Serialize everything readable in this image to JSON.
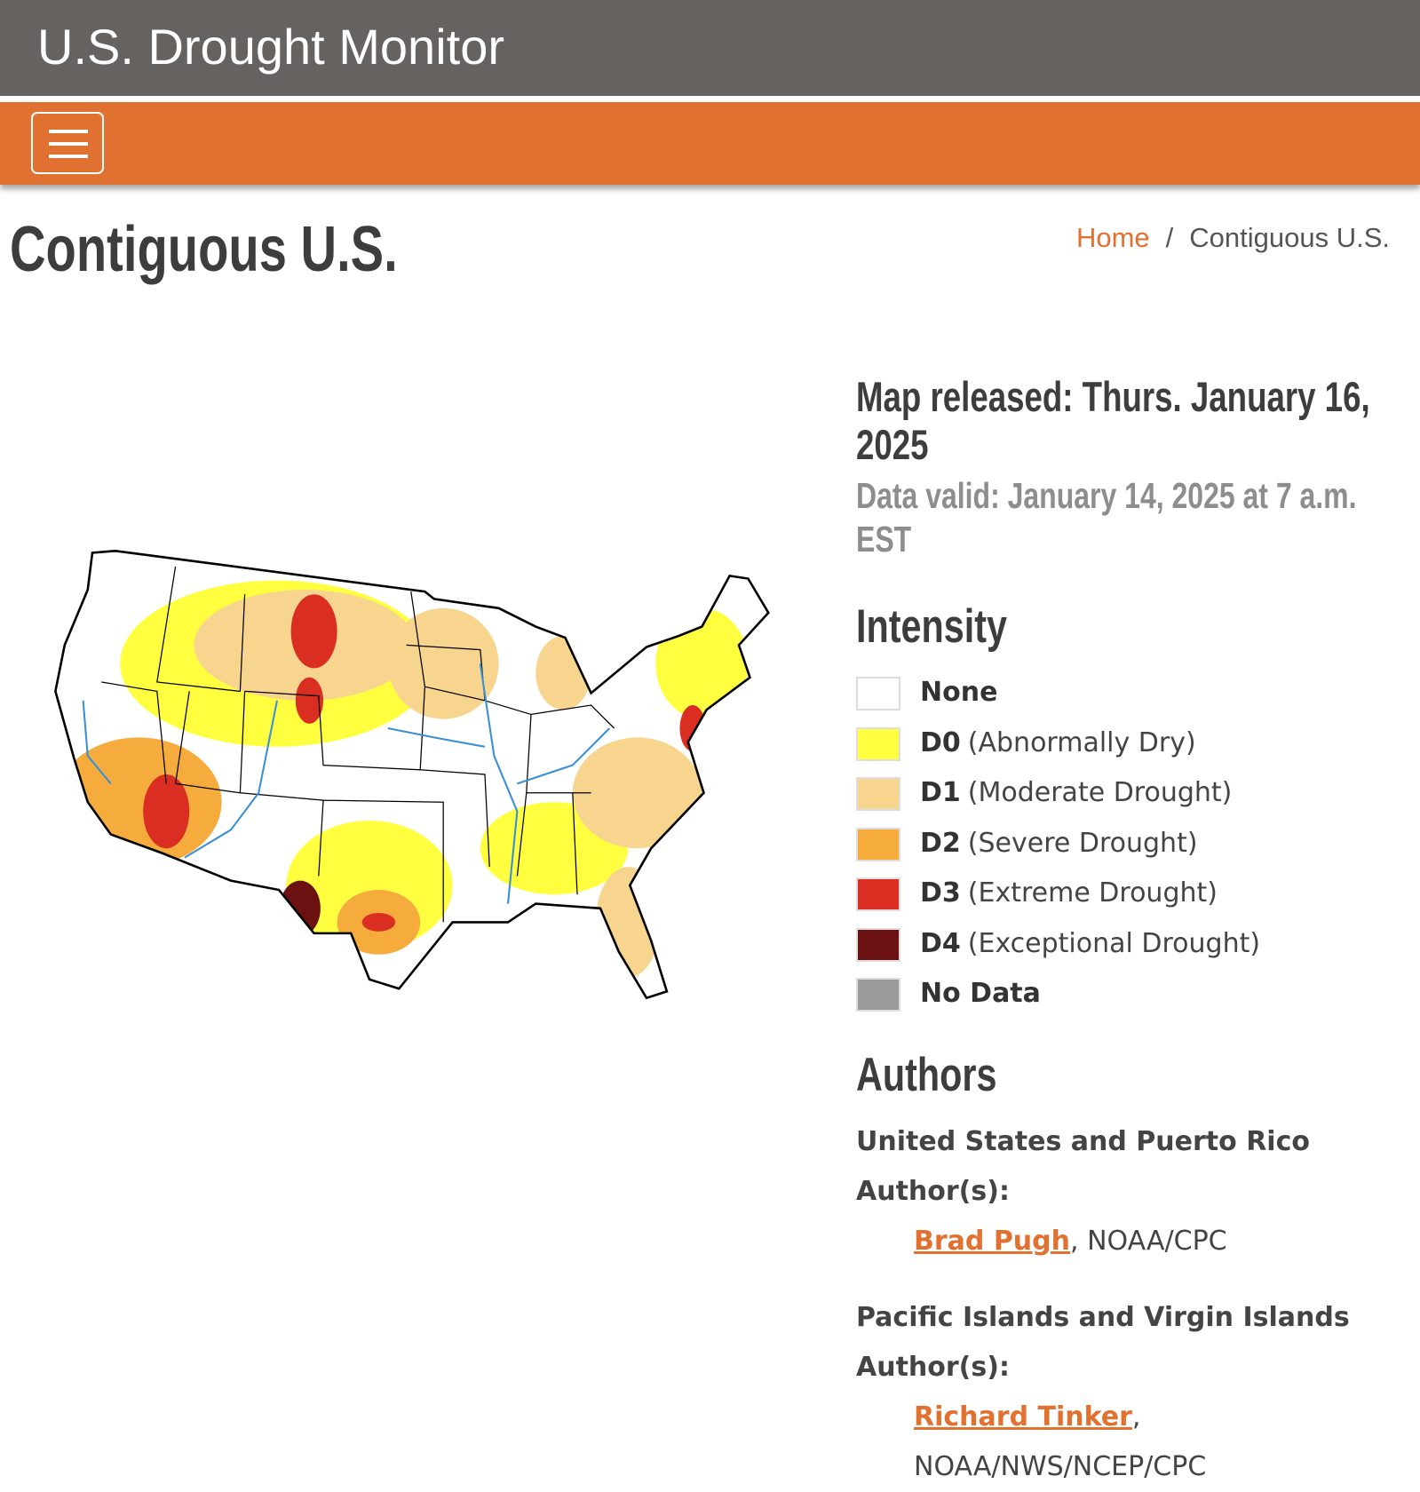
{
  "header": {
    "title": "U.S. Drought Monitor"
  },
  "page": {
    "title": "Contiguous U.S.",
    "breadcrumb": {
      "items": [
        "Home",
        "Contiguous U.S."
      ],
      "separator": "/"
    }
  },
  "map_info": {
    "released": "Map released: Thurs. January 16, 2025",
    "valid": "Data valid: January 14, 2025 at 7 a.m. EST"
  },
  "legend": {
    "title": "Intensity",
    "items": [
      {
        "code": "None",
        "color": "#ffffff"
      },
      {
        "code": "D0",
        "description": "(Abnormally Dry)",
        "color": "#ffff40"
      },
      {
        "code": "D1",
        "description": "(Moderate Drought)",
        "color": "#f8d58f"
      },
      {
        "code": "D2",
        "description": "(Severe Drought)",
        "color": "#f5ac3d"
      },
      {
        "code": "D3",
        "description": "(Extreme Drought)",
        "color": "#d92e21"
      },
      {
        "code": "D4",
        "description": "(Exceptional Drought)",
        "color": "#6b1111"
      },
      {
        "code": "No Data",
        "color": "#9b9b9b"
      }
    ]
  },
  "authors": {
    "title": "Authors",
    "groups": [
      {
        "heading": "United States and Puerto Rico Author(s):",
        "authors": [
          {
            "name": "Brad Pugh",
            "separator": ",",
            "affiliation": "NOAA/CPC"
          }
        ]
      },
      {
        "heading": "Pacific Islands and Virgin Islands Author(s):",
        "authors": [
          {
            "name": "Richard Tinker",
            "separator": ",",
            "affiliation": "NOAA/NWS/NCEP/CPC"
          }
        ]
      }
    ]
  }
}
